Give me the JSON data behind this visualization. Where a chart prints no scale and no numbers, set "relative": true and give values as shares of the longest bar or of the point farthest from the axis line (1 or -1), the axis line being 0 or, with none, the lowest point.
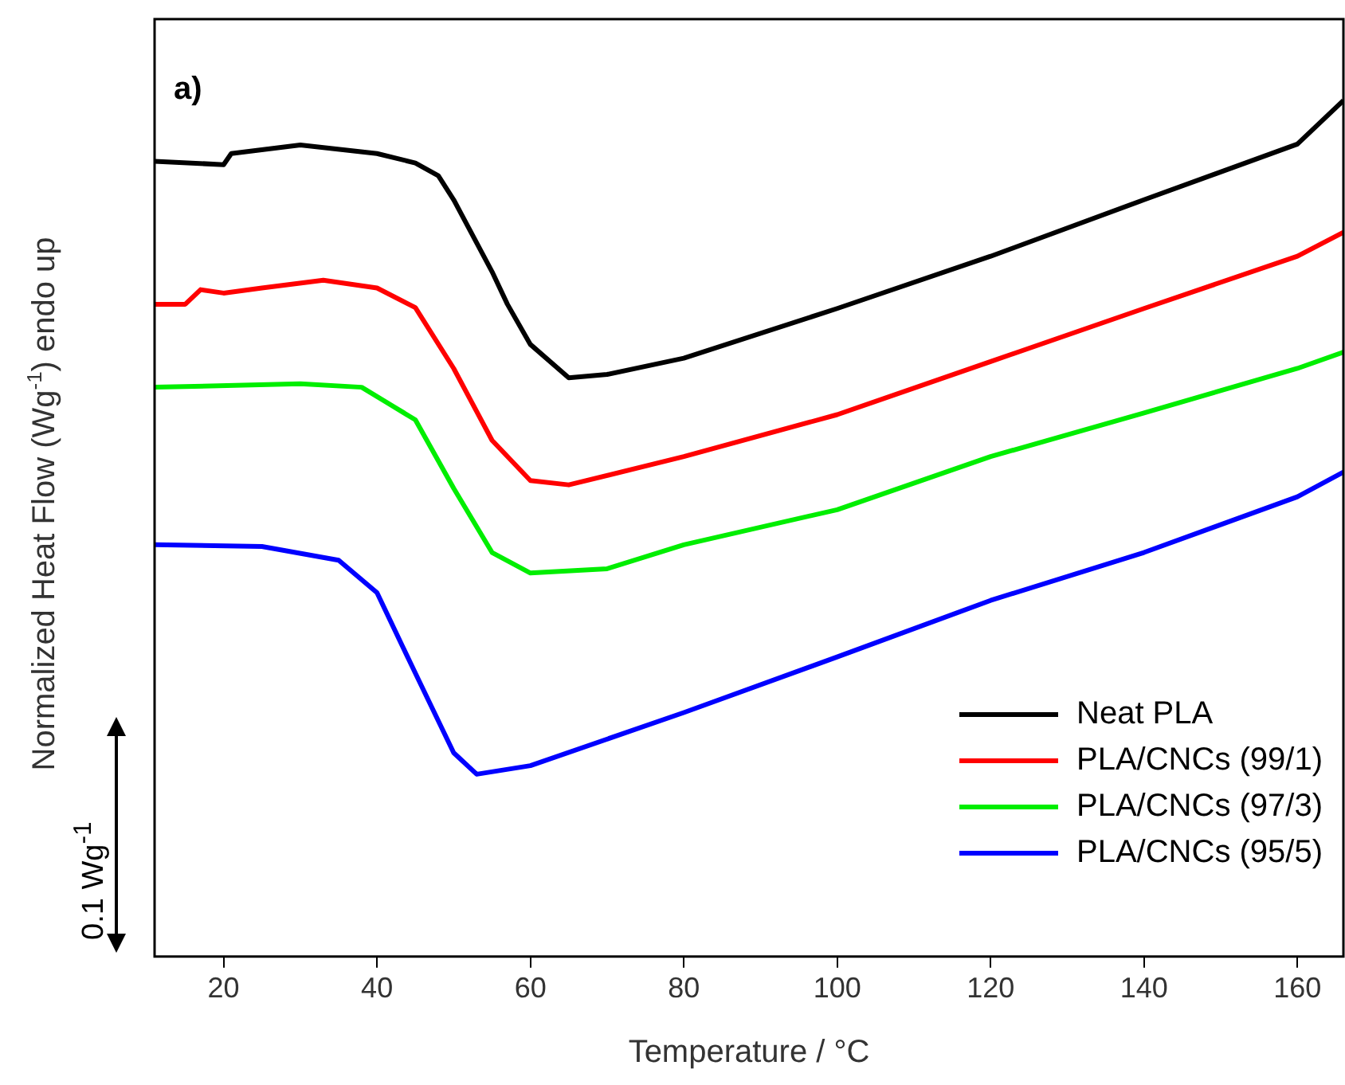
{
  "chart_data": {
    "type": "line",
    "xlabel": "Temperature / °C",
    "ylabel": "Normalized Heat Flow (Wg$^{-1}$) endo up",
    "relative": true,
    "xlim": [
      11,
      166
    ],
    "xticks": [
      20,
      40,
      60,
      80,
      100,
      120,
      140,
      160
    ],
    "grid": false,
    "legend": "bottom right",
    "marker": "none",
    "line_style": "solid",
    "annotations": [
      "a)",
      "0.1 Wg$^{-1}$"
    ],
    "series": [
      {
        "name": "Neat PLA",
        "color": "#000000",
        "x": [
          11,
          20,
          21,
          30,
          40,
          45,
          48,
          50,
          55,
          57,
          60,
          65,
          70,
          80,
          100,
          120,
          140,
          160,
          166
        ],
        "values": [
          0.929,
          0.925,
          0.938,
          0.948,
          0.938,
          0.927,
          0.912,
          0.884,
          0.8,
          0.762,
          0.715,
          0.676,
          0.68,
          0.699,
          0.757,
          0.818,
          0.884,
          0.949,
          1
        ]
      },
      {
        "name": "PLA/CNCs (99/1)",
        "color": "#ff0000",
        "x": [
          11,
          15,
          17,
          20,
          25,
          33,
          40,
          45,
          50,
          55,
          60,
          65,
          80,
          100,
          120,
          140,
          160,
          166
        ],
        "values": [
          0.762,
          0.762,
          0.779,
          0.775,
          0.781,
          0.79,
          0.781,
          0.758,
          0.687,
          0.603,
          0.556,
          0.551,
          0.584,
          0.633,
          0.695,
          0.757,
          0.818,
          0.846
        ]
      },
      {
        "name": "PLA/CNCs (97/3)",
        "color": "#00ee00",
        "x": [
          11,
          30,
          38,
          45,
          50,
          55,
          60,
          70,
          80,
          100,
          120,
          140,
          160,
          166
        ],
        "values": [
          0.665,
          0.669,
          0.665,
          0.627,
          0.547,
          0.472,
          0.448,
          0.453,
          0.481,
          0.522,
          0.584,
          0.635,
          0.687,
          0.706
        ]
      },
      {
        "name": "PLA/CNCs (95/5)",
        "color": "#0000ff",
        "x": [
          11,
          25,
          35,
          40,
          45,
          50,
          53,
          60,
          80,
          100,
          120,
          140,
          160,
          166
        ],
        "values": [
          0.481,
          0.479,
          0.463,
          0.425,
          0.331,
          0.238,
          0.213,
          0.223,
          0.285,
          0.35,
          0.416,
          0.472,
          0.537,
          0.566
        ]
      }
    ]
  }
}
